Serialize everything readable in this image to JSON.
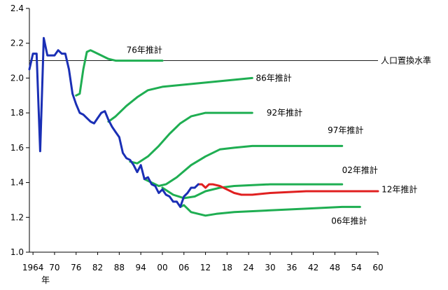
{
  "chart_data": {
    "type": "line",
    "title": "",
    "xlabel": "年",
    "ylabel": "",
    "ylim": [
      1.0,
      2.4
    ],
    "xlim": [
      1963,
      2060
    ],
    "yticks": [
      1.0,
      1.2,
      1.4,
      1.6,
      1.8,
      2.0,
      2.2,
      2.4
    ],
    "ytick_labels": [
      "1.0",
      "1.2",
      "1.4",
      "1.6",
      "1.8",
      "2.0",
      "2.2",
      "2.4"
    ],
    "xticks": [
      1964,
      1970,
      1976,
      1982,
      1988,
      1994,
      2000,
      2006,
      2012,
      2018,
      2024,
      2030,
      2036,
      2042,
      2048,
      2054,
      2060
    ],
    "xtick_labels": [
      "1964",
      "70",
      "76",
      "82",
      "88",
      "94",
      "00",
      "06",
      "12",
      "18",
      "24",
      "30",
      "36",
      "42",
      "48",
      "54",
      "60"
    ],
    "grid": false,
    "reference_line": {
      "y": 2.1,
      "label": "人口置換水準"
    },
    "colors": {
      "actual": "#1a2fb5",
      "projection": "#1fae52",
      "projection_2012": "#e02020",
      "reference": "#000000"
    },
    "series": [
      {
        "name": "",
        "color": "#1a2fb5",
        "points": [
          [
            1963,
            2.05
          ],
          [
            1964,
            2.14
          ],
          [
            1965,
            2.14
          ],
          [
            1966,
            1.58
          ],
          [
            1967,
            2.23
          ],
          [
            1968,
            2.13
          ],
          [
            1969,
            2.13
          ],
          [
            1970,
            2.13
          ],
          [
            1971,
            2.16
          ],
          [
            1972,
            2.14
          ],
          [
            1973,
            2.14
          ],
          [
            1974,
            2.05
          ],
          [
            1975,
            1.91
          ],
          [
            1976,
            1.85
          ],
          [
            1977,
            1.8
          ],
          [
            1978,
            1.79
          ],
          [
            1979,
            1.77
          ],
          [
            1980,
            1.75
          ],
          [
            1981,
            1.74
          ],
          [
            1982,
            1.77
          ],
          [
            1983,
            1.8
          ],
          [
            1984,
            1.81
          ],
          [
            1985,
            1.76
          ],
          [
            1986,
            1.72
          ],
          [
            1987,
            1.69
          ],
          [
            1988,
            1.66
          ],
          [
            1989,
            1.57
          ],
          [
            1990,
            1.54
          ],
          [
            1991,
            1.53
          ],
          [
            1992,
            1.5
          ],
          [
            1993,
            1.46
          ],
          [
            1994,
            1.5
          ],
          [
            1995,
            1.42
          ],
          [
            1996,
            1.43
          ],
          [
            1997,
            1.39
          ],
          [
            1998,
            1.38
          ],
          [
            1999,
            1.34
          ],
          [
            2000,
            1.36
          ],
          [
            2001,
            1.33
          ],
          [
            2002,
            1.32
          ],
          [
            2003,
            1.29
          ],
          [
            2004,
            1.29
          ],
          [
            2005,
            1.26
          ],
          [
            2006,
            1.32
          ],
          [
            2007,
            1.34
          ],
          [
            2008,
            1.37
          ],
          [
            2009,
            1.37
          ],
          [
            2010,
            1.39
          ]
        ]
      },
      {
        "name": "76年推計",
        "color": "#1fae52",
        "label_at": [
          1990,
          2.16
        ],
        "points": [
          [
            1976,
            1.9
          ],
          [
            1977,
            1.91
          ],
          [
            1978,
            2.05
          ],
          [
            1979,
            2.15
          ],
          [
            1980,
            2.16
          ],
          [
            1981,
            2.15
          ],
          [
            1983,
            2.13
          ],
          [
            1985,
            2.11
          ],
          [
            1987,
            2.1
          ],
          [
            1990,
            2.1
          ],
          [
            1995,
            2.1
          ],
          [
            2000,
            2.1
          ]
        ]
      },
      {
        "name": "86年推計",
        "color": "#1fae52",
        "label_at": [
          2026,
          2.0
        ],
        "points": [
          [
            1985,
            1.75
          ],
          [
            1987,
            1.78
          ],
          [
            1990,
            1.84
          ],
          [
            1993,
            1.89
          ],
          [
            1996,
            1.93
          ],
          [
            2000,
            1.95
          ],
          [
            2005,
            1.96
          ],
          [
            2010,
            1.97
          ],
          [
            2015,
            1.98
          ],
          [
            2020,
            1.99
          ],
          [
            2025,
            2.0
          ]
        ]
      },
      {
        "name": "92年推計",
        "color": "#1fae52",
        "label_at": [
          2029,
          1.8
        ],
        "points": [
          [
            1991,
            1.52
          ],
          [
            1993,
            1.51
          ],
          [
            1996,
            1.55
          ],
          [
            1999,
            1.61
          ],
          [
            2002,
            1.68
          ],
          [
            2005,
            1.74
          ],
          [
            2008,
            1.78
          ],
          [
            2012,
            1.8
          ],
          [
            2016,
            1.8
          ],
          [
            2020,
            1.8
          ],
          [
            2025,
            1.8
          ]
        ]
      },
      {
        "name": "97年推計",
        "color": "#1fae52",
        "label_at": [
          2046,
          1.7
        ],
        "points": [
          [
            1995,
            1.42
          ],
          [
            1997,
            1.4
          ],
          [
            1999,
            1.38
          ],
          [
            2001,
            1.39
          ],
          [
            2004,
            1.43
          ],
          [
            2008,
            1.5
          ],
          [
            2012,
            1.55
          ],
          [
            2016,
            1.59
          ],
          [
            2020,
            1.6
          ],
          [
            2025,
            1.61
          ],
          [
            2035,
            1.61
          ],
          [
            2045,
            1.61
          ],
          [
            2050,
            1.61
          ]
        ]
      },
      {
        "name": "02年推計",
        "color": "#1fae52",
        "label_at": [
          2050,
          1.47
        ],
        "points": [
          [
            2000,
            1.37
          ],
          [
            2003,
            1.33
          ],
          [
            2006,
            1.31
          ],
          [
            2009,
            1.32
          ],
          [
            2012,
            1.35
          ],
          [
            2016,
            1.37
          ],
          [
            2020,
            1.38
          ],
          [
            2030,
            1.39
          ],
          [
            2040,
            1.39
          ],
          [
            2050,
            1.39
          ]
        ]
      },
      {
        "name": "06年推計",
        "color": "#1fae52",
        "label_at": [
          2047,
          1.18
        ],
        "points": [
          [
            2005,
            1.26
          ],
          [
            2006,
            1.27
          ],
          [
            2008,
            1.23
          ],
          [
            2010,
            1.22
          ],
          [
            2012,
            1.21
          ],
          [
            2015,
            1.22
          ],
          [
            2020,
            1.23
          ],
          [
            2030,
            1.24
          ],
          [
            2040,
            1.25
          ],
          [
            2050,
            1.26
          ],
          [
            2055,
            1.26
          ]
        ]
      },
      {
        "name": "12年推計",
        "color": "#e02020",
        "label_at": [
          2061,
          1.36
        ],
        "points": [
          [
            2010,
            1.39
          ],
          [
            2011,
            1.39
          ],
          [
            2012,
            1.37
          ],
          [
            2013,
            1.39
          ],
          [
            2014,
            1.39
          ],
          [
            2016,
            1.38
          ],
          [
            2018,
            1.36
          ],
          [
            2020,
            1.34
          ],
          [
            2022,
            1.33
          ],
          [
            2025,
            1.33
          ],
          [
            2030,
            1.34
          ],
          [
            2040,
            1.35
          ],
          [
            2050,
            1.35
          ],
          [
            2060,
            1.35
          ]
        ]
      }
    ]
  }
}
